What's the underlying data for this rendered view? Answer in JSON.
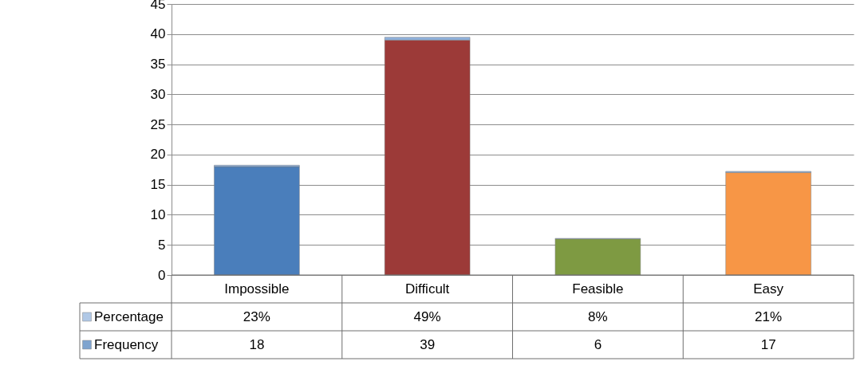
{
  "chart_data": {
    "type": "bar",
    "stacked": true,
    "categories": [
      "Impossible",
      "Difficult",
      "Feasible",
      "Easy"
    ],
    "series": [
      {
        "name": "Frequency",
        "color": "#4a7ebb",
        "colors": [
          "#4a7ebb",
          "#9c3a38",
          "#7e9a42",
          "#f79646"
        ],
        "values": [
          18,
          39,
          6,
          17
        ],
        "value_labels": [
          "18",
          "39",
          "6",
          "17"
        ]
      },
      {
        "name": "Percentage",
        "color": "#8fb1dc",
        "values": [
          0.23,
          0.49,
          0.08,
          0.21
        ],
        "value_labels": [
          "23%",
          "49%",
          "8%",
          "21%"
        ]
      }
    ],
    "ylim": [
      0,
      45
    ],
    "yticks": [
      0,
      5,
      10,
      15,
      20,
      25,
      30,
      35,
      40,
      45
    ],
    "grid": "y",
    "legend": "bottom"
  }
}
